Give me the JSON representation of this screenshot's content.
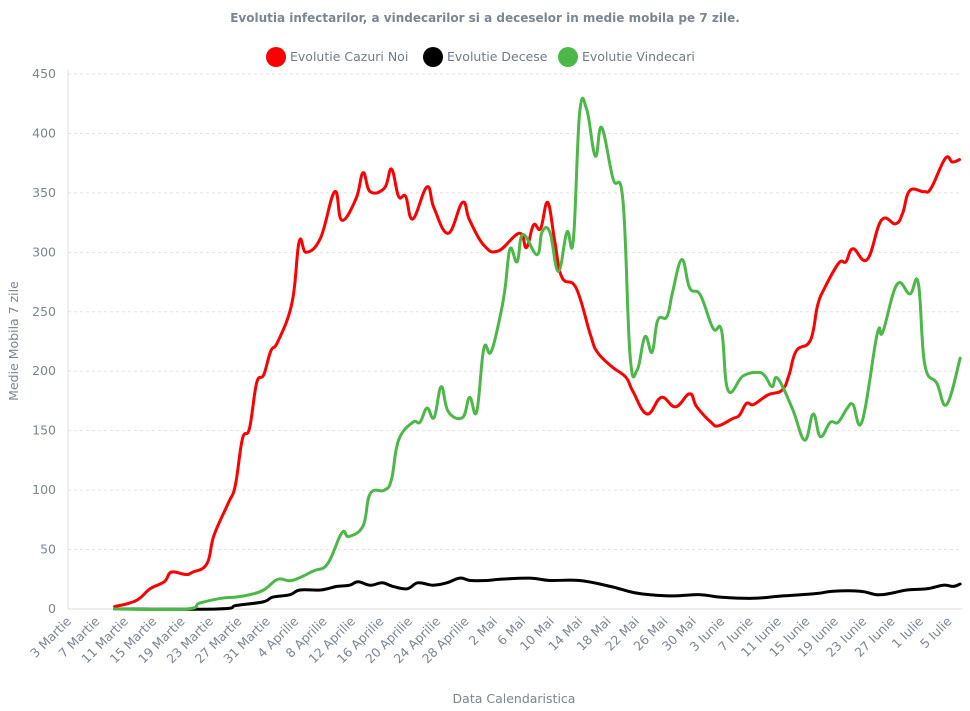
{
  "chart_data": {
    "type": "line",
    "title": "Evolutia infectarilor, a vindecarilor si a deceselor in medie mobila pe 7 zile.",
    "xlabel": "Data Calendaristica",
    "ylabel": "Medie Mobila 7 zile",
    "ylim": [
      0,
      450
    ],
    "yticks": [
      0,
      50,
      100,
      150,
      200,
      250,
      300,
      350,
      400,
      450
    ],
    "grid": true,
    "legend_position": "top-center",
    "x_unit": "days since 3 Martie",
    "xlim": [
      0,
      126
    ],
    "xtick_step_days": 4,
    "xtick_labels": [
      "3 Martie",
      "7 Martie",
      "11 Martie",
      "15 Martie",
      "19 Martie",
      "23 Martie",
      "27 Martie",
      "31 Martie",
      "4 Aprilie",
      "8 Aprilie",
      "12 Aprilie",
      "16 Aprilie",
      "20 Aprilie",
      "24 Aprilie",
      "28 Aprilie",
      "2 Mai",
      "6 Mai",
      "10 Mai",
      "14 Mai",
      "18 Mai",
      "22 Mai",
      "26 Mai",
      "30 Mai",
      "3 Iunie",
      "7 Iunie",
      "11 Iunie",
      "15 Iunie",
      "19 Iunie",
      "23 Iunie",
      "27 Iunie",
      "1 Iulie",
      "5 Iulie"
    ],
    "series": [
      {
        "name": "Evolutie Cazuri Noi",
        "color": "#ff0000",
        "points": [
          [
            6,
            2
          ],
          [
            9,
            7
          ],
          [
            11,
            17
          ],
          [
            13,
            23
          ],
          [
            14,
            31
          ],
          [
            16,
            29
          ],
          [
            17,
            31
          ],
          [
            19,
            38
          ],
          [
            20,
            62
          ],
          [
            22,
            89
          ],
          [
            23,
            104
          ],
          [
            24,
            143
          ],
          [
            25,
            152
          ],
          [
            26,
            190
          ],
          [
            27,
            197
          ],
          [
            28,
            217
          ],
          [
            29,
            225
          ],
          [
            31,
            258
          ],
          [
            32,
            309
          ],
          [
            33,
            300
          ],
          [
            35,
            312
          ],
          [
            37,
            351
          ],
          [
            38,
            327
          ],
          [
            40,
            345
          ],
          [
            41,
            367
          ],
          [
            42,
            351
          ],
          [
            44,
            354
          ],
          [
            45,
            370
          ],
          [
            46,
            347
          ],
          [
            47,
            347
          ],
          [
            48,
            328
          ],
          [
            50,
            355
          ],
          [
            51,
            337
          ],
          [
            53,
            316
          ],
          [
            55,
            342
          ],
          [
            56,
            327
          ],
          [
            58,
            306
          ],
          [
            60,
            301
          ],
          [
            63,
            316
          ],
          [
            64,
            304
          ],
          [
            65,
            323
          ],
          [
            66,
            320
          ],
          [
            67,
            342
          ],
          [
            68,
            309
          ],
          [
            69,
            279
          ],
          [
            71,
            270
          ],
          [
            73,
            231
          ],
          [
            74,
            216
          ],
          [
            76,
            204
          ],
          [
            78,
            195
          ],
          [
            79,
            183
          ],
          [
            81,
            164
          ],
          [
            83,
            178
          ],
          [
            85,
            170
          ],
          [
            87,
            181
          ],
          [
            88,
            170
          ],
          [
            90,
            157
          ],
          [
            91,
            154
          ],
          [
            93,
            160
          ],
          [
            94,
            163
          ],
          [
            95,
            173
          ],
          [
            96,
            172
          ],
          [
            98,
            180
          ],
          [
            100,
            184
          ],
          [
            101,
            197
          ],
          [
            102,
            217
          ],
          [
            104,
            226
          ],
          [
            105,
            255
          ],
          [
            106,
            270
          ],
          [
            108,
            291
          ],
          [
            109,
            292
          ],
          [
            110,
            303
          ],
          [
            112,
            294
          ],
          [
            114,
            327
          ],
          [
            116,
            324
          ],
          [
            117,
            333
          ],
          [
            118,
            352
          ],
          [
            120,
            351
          ],
          [
            121,
            354
          ],
          [
            123,
            379
          ],
          [
            124,
            376
          ],
          [
            125,
            378
          ]
        ]
      },
      {
        "name": "Evolutie Decese",
        "color": "#000000",
        "points": [
          [
            6,
            0
          ],
          [
            20.4,
            0
          ],
          [
            23.2,
            3
          ],
          [
            26.9,
            6
          ],
          [
            28.3,
            10
          ],
          [
            30.7,
            12
          ],
          [
            32.1,
            16
          ],
          [
            35,
            16
          ],
          [
            37.3,
            19
          ],
          [
            39.1,
            20
          ],
          [
            40.3,
            23
          ],
          [
            42,
            20
          ],
          [
            43.7,
            22
          ],
          [
            45.2,
            19
          ],
          [
            47.2,
            17
          ],
          [
            48.7,
            22
          ],
          [
            50.8,
            20
          ],
          [
            52.8,
            22
          ],
          [
            54.6,
            26
          ],
          [
            56.1,
            24
          ],
          [
            58.5,
            24
          ],
          [
            60.3,
            25
          ],
          [
            64.5,
            26
          ],
          [
            67.3,
            24
          ],
          [
            71.5,
            24
          ],
          [
            75.8,
            19
          ],
          [
            79,
            14
          ],
          [
            81.4,
            12
          ],
          [
            84.6,
            11
          ],
          [
            88.5,
            12
          ],
          [
            91.3,
            10
          ],
          [
            95.9,
            9
          ],
          [
            100.1,
            11
          ],
          [
            104.9,
            13
          ],
          [
            107.2,
            15
          ],
          [
            111,
            15
          ],
          [
            113.4,
            12
          ],
          [
            115.2,
            13
          ],
          [
            117.6,
            16
          ],
          [
            120.4,
            17
          ],
          [
            122.7,
            20
          ],
          [
            124.1,
            19
          ],
          [
            125.1,
            21
          ]
        ]
      },
      {
        "name": "Evolutie Vindecari",
        "color": "#4cb847",
        "points": [
          [
            6,
            0
          ],
          [
            16,
            0
          ],
          [
            18,
            5
          ],
          [
            21,
            9
          ],
          [
            23,
            10
          ],
          [
            25,
            12
          ],
          [
            27,
            16
          ],
          [
            29,
            25
          ],
          [
            31,
            24
          ],
          [
            34,
            32
          ],
          [
            36,
            38
          ],
          [
            38,
            64
          ],
          [
            39,
            61
          ],
          [
            41,
            70
          ],
          [
            42,
            97
          ],
          [
            44,
            100
          ],
          [
            45,
            109
          ],
          [
            46,
            142
          ],
          [
            48,
            157
          ],
          [
            49,
            157
          ],
          [
            50,
            169
          ],
          [
            51,
            161
          ],
          [
            52,
            187
          ],
          [
            53,
            166
          ],
          [
            55,
            161
          ],
          [
            56,
            178
          ],
          [
            57,
            166
          ],
          [
            58,
            219
          ],
          [
            59,
            216
          ],
          [
            60.3,
            246
          ],
          [
            61,
            270
          ],
          [
            61.7,
            303
          ],
          [
            62.7,
            292
          ],
          [
            63.5,
            315
          ],
          [
            65.5,
            298
          ],
          [
            66.2,
            317
          ],
          [
            67.3,
            317
          ],
          [
            68.5,
            284
          ],
          [
            69.7,
            317
          ],
          [
            70.6,
            310
          ],
          [
            71.5,
            417
          ],
          [
            72.5,
            420
          ],
          [
            73.7,
            381
          ],
          [
            74.6,
            405
          ],
          [
            76.2,
            362
          ],
          [
            77.6,
            343
          ],
          [
            78.6,
            213
          ],
          [
            79.6,
            201
          ],
          [
            80.7,
            229
          ],
          [
            81.7,
            216
          ],
          [
            82.5,
            243
          ],
          [
            83.8,
            246
          ],
          [
            84.6,
            267
          ],
          [
            85.9,
            294
          ],
          [
            87,
            270
          ],
          [
            88.5,
            264
          ],
          [
            90.3,
            236
          ],
          [
            91.5,
            234
          ],
          [
            92.4,
            184
          ],
          [
            94.5,
            196
          ],
          [
            96.6,
            199
          ],
          [
            97.6,
            196
          ],
          [
            98.6,
            187
          ],
          [
            99.4,
            194
          ],
          [
            101.5,
            168
          ],
          [
            103.2,
            142
          ],
          [
            104.4,
            164
          ],
          [
            105.4,
            145
          ],
          [
            106.8,
            157
          ],
          [
            107.9,
            157
          ],
          [
            109.2,
            169
          ],
          [
            110,
            172
          ],
          [
            111.3,
            158
          ],
          [
            113.4,
            231
          ],
          [
            114.2,
            233
          ],
          [
            116.2,
            273
          ],
          [
            118,
            265
          ],
          [
            119.2,
            274
          ],
          [
            120.1,
            206
          ],
          [
            121.8,
            190
          ],
          [
            123.2,
            172
          ],
          [
            125.1,
            211
          ]
        ]
      }
    ]
  }
}
